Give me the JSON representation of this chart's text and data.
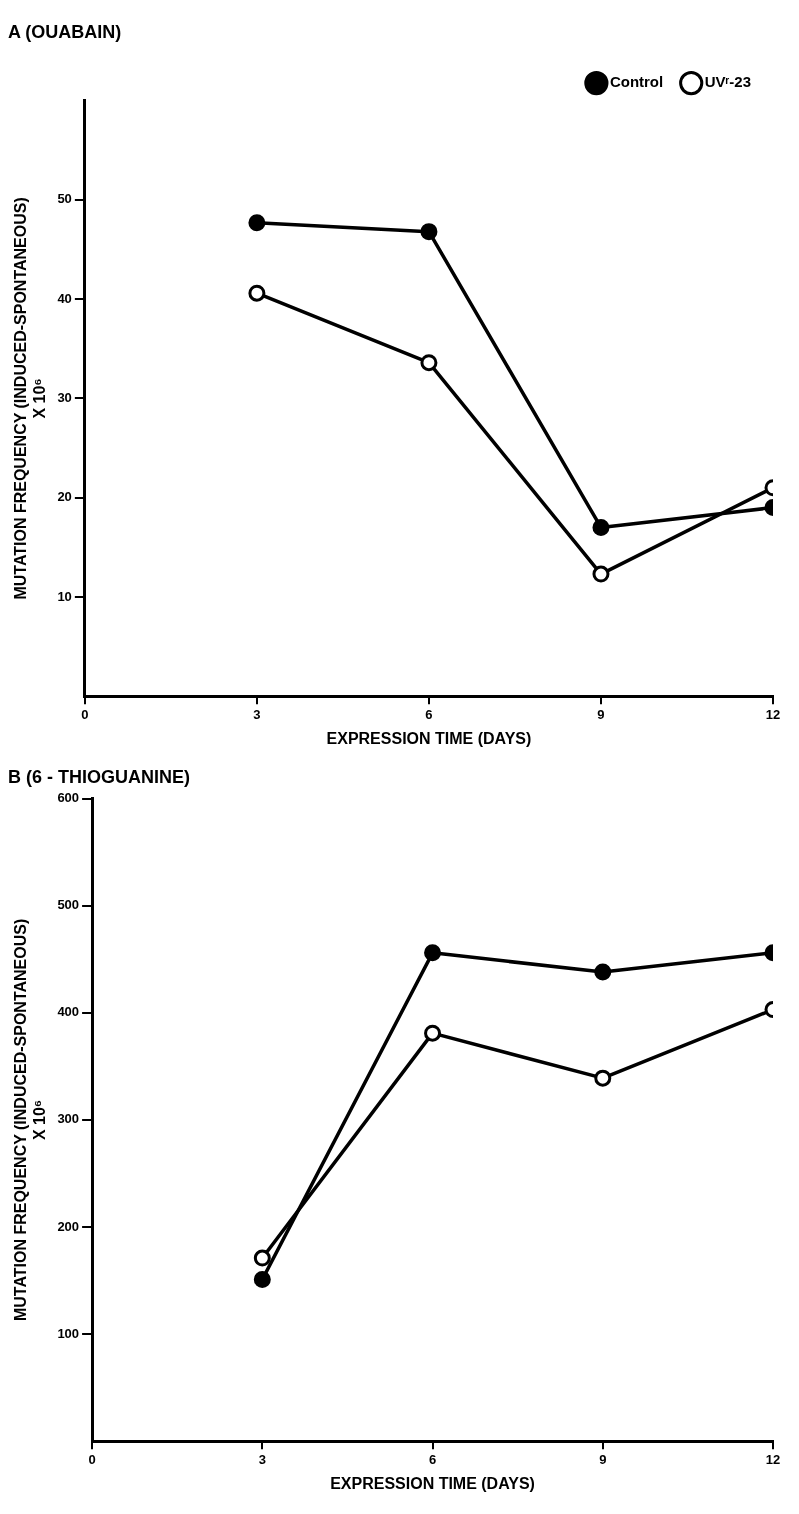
{
  "chart_data": [
    {
      "type": "line",
      "title": "A (OUABAIN)",
      "xlabel": "EXPRESSION TIME (DAYS)",
      "ylabel": "MUTATION FREQUENCY (INDUCED-SPONTANEOUS)\nX 10⁶",
      "x": [
        3,
        6,
        9,
        12
      ],
      "xlim": [
        0,
        12
      ],
      "xticks": [
        0,
        3,
        6,
        9,
        12
      ],
      "ylim": [
        0,
        60
      ],
      "yticks": [
        10,
        20,
        30,
        40,
        50
      ],
      "grid": false,
      "legend": "top right",
      "marker": "circle",
      "line_style": "solid",
      "series": [
        {
          "name": "Control",
          "color": "#000000",
          "values": [
            47.7,
            46.8,
            17.0,
            19.0
          ]
        },
        {
          "name": "UVʳ-23",
          "color": "#000000",
          "values": [
            40.6,
            33.6,
            12.3,
            21.0
          ]
        }
      ]
    },
    {
      "type": "line",
      "title": "B (6 - THIOGUANINE)",
      "xlabel": "EXPRESSION TIME (DAYS)",
      "ylabel": "MUTATION FREQUENCY (INDUCED-SPONTANEOUS)\nX 10⁶",
      "x": [
        3,
        6,
        9,
        12
      ],
      "xlim": [
        0,
        12
      ],
      "xticks": [
        0,
        3,
        6,
        9,
        12
      ],
      "ylim": [
        0,
        600
      ],
      "yticks": [
        100,
        200,
        300,
        400,
        500,
        600
      ],
      "grid": false,
      "marker": "circle",
      "line_style": "solid",
      "series": [
        {
          "color": "#000000",
          "values": [
            151,
            456,
            438,
            456
          ]
        },
        {
          "color": "#000000",
          "values": [
            171,
            381,
            339,
            403
          ]
        }
      ]
    }
  ]
}
